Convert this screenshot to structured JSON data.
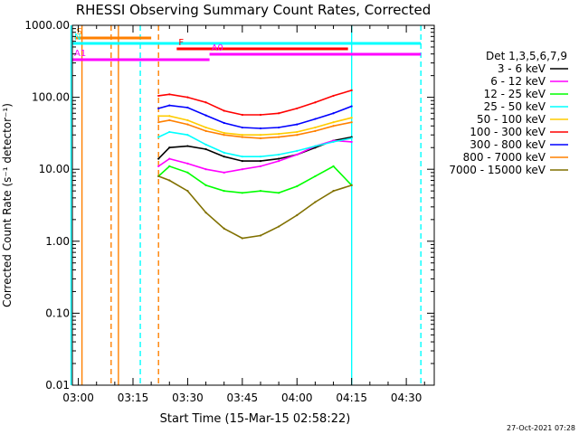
{
  "chart_data": {
    "type": "line",
    "title": "RHESSI Observing Summary Count Rates, Corrected",
    "xlabel": "Start Time (15-Mar-15 02:58:22)",
    "ylabel": "Corrected Count Rate (s⁻¹ detector⁻¹)",
    "y_scale": "log",
    "ylim": [
      0.01,
      1000
    ],
    "xlim": [
      "02:58:22",
      "04:37:40"
    ],
    "y_ticks": [
      "0.01",
      "0.10",
      "1.00",
      "10.00",
      "100.00",
      "1000.00"
    ],
    "x_ticks": [
      "03:00",
      "03:15",
      "03:30",
      "03:45",
      "04:00",
      "04:15",
      "04:30"
    ],
    "legend_title": "Det 1,3,5,6,7,9",
    "legend_position": "right",
    "series": [
      {
        "name": "3 - 6 keV",
        "color": "#000000",
        "x": [
          "03:22",
          "03:25",
          "03:30",
          "03:35",
          "03:40",
          "03:45",
          "03:50",
          "03:55",
          "04:00",
          "04:05",
          "04:10",
          "04:15"
        ],
        "values": [
          14,
          20,
          21,
          19,
          15,
          13,
          13,
          14,
          16,
          20,
          25,
          28
        ]
      },
      {
        "name": "6 - 12 keV",
        "color": "#ff00ff",
        "x": [
          "03:22",
          "03:25",
          "03:30",
          "03:35",
          "03:40",
          "03:45",
          "03:50",
          "03:55",
          "04:00",
          "04:05",
          "04:10",
          "04:15"
        ],
        "values": [
          11,
          14,
          12,
          10,
          9,
          10,
          11,
          13,
          16,
          21,
          25,
          24
        ]
      },
      {
        "name": "12 - 25 keV",
        "color": "#00ff00",
        "x": [
          "03:22",
          "03:25",
          "03:30",
          "03:35",
          "03:40",
          "03:45",
          "03:50",
          "03:55",
          "04:00",
          "04:05",
          "04:10",
          "04:15"
        ],
        "values": [
          8,
          11,
          9,
          6,
          5,
          4.7,
          5,
          4.7,
          5.8,
          8,
          11,
          6
        ]
      },
      {
        "name": "25 - 50 keV",
        "color": "#00ffff",
        "x": [
          "03:22",
          "03:25",
          "03:30",
          "03:35",
          "03:40",
          "03:45",
          "03:50",
          "03:55",
          "04:00",
          "04:05",
          "04:10",
          "04:15"
        ],
        "values": [
          28,
          33,
          30,
          22,
          17,
          15,
          15,
          16,
          18,
          21,
          24,
          27
        ]
      },
      {
        "name": "50 - 100 keV",
        "color": "#ffcc00",
        "x": [
          "03:22",
          "03:25",
          "03:30",
          "03:35",
          "03:40",
          "03:45",
          "03:50",
          "03:55",
          "04:00",
          "04:05",
          "04:10",
          "04:15"
        ],
        "values": [
          55,
          55,
          48,
          38,
          32,
          30,
          30,
          31,
          33,
          38,
          45,
          52
        ]
      },
      {
        "name": "100 - 300 keV",
        "color": "#ff0000",
        "x": [
          "03:22",
          "03:25",
          "03:30",
          "03:35",
          "03:40",
          "03:45",
          "03:50",
          "03:55",
          "04:00",
          "04:05",
          "04:10",
          "04:15"
        ],
        "values": [
          105,
          110,
          100,
          85,
          65,
          57,
          57,
          60,
          70,
          85,
          105,
          125
        ]
      },
      {
        "name": "300 - 800 keV",
        "color": "#0000ff",
        "x": [
          "03:22",
          "03:25",
          "03:30",
          "03:35",
          "03:40",
          "03:45",
          "03:50",
          "03:55",
          "04:00",
          "04:05",
          "04:10",
          "04:15"
        ],
        "values": [
          70,
          77,
          72,
          56,
          44,
          38,
          37,
          38,
          42,
          50,
          60,
          75
        ]
      },
      {
        "name": "800 - 7000 keV",
        "color": "#ff8000",
        "x": [
          "03:22",
          "03:25",
          "03:30",
          "03:35",
          "03:40",
          "03:45",
          "03:50",
          "03:55",
          "04:00",
          "04:05",
          "04:10",
          "04:15"
        ],
        "values": [
          45,
          48,
          42,
          34,
          30,
          28,
          27,
          28,
          30,
          34,
          40,
          45
        ]
      },
      {
        "name": "7000 - 15000 keV",
        "color": "#807000",
        "x": [
          "03:22",
          "03:25",
          "03:30",
          "03:35",
          "03:40",
          "03:45",
          "03:50",
          "03:55",
          "04:00",
          "04:05",
          "04:10",
          "04:15"
        ],
        "values": [
          8,
          7,
          5,
          2.5,
          1.5,
          1.1,
          1.2,
          1.6,
          2.3,
          3.5,
          5,
          6
        ]
      }
    ],
    "flags": [
      {
        "label": "S",
        "color": "#ff8000",
        "x_start": "02:59",
        "x_end": "03:20"
      },
      {
        "label": "N",
        "color": "#00ffff",
        "x_start": "02:58",
        "x_end": "04:34"
      },
      {
        "label": "F",
        "color": "#ff0000",
        "x_start": "03:27",
        "x_end": "04:14"
      },
      {
        "label": "A0",
        "color": "#ff00ff",
        "x_start": "03:36",
        "x_end": "04:34"
      },
      {
        "label": "A1",
        "color": "#ff00ff",
        "x_start": "02:58",
        "x_end": "03:36"
      }
    ],
    "vertical_markers": [
      {
        "color": "#00ffff",
        "style": "solid",
        "x": "02:58"
      },
      {
        "color": "#ff8000",
        "style": "solid",
        "x": "03:01"
      },
      {
        "color": "#ff8000",
        "style": "dashed",
        "x": "03:09"
      },
      {
        "color": "#ff8000",
        "style": "solid",
        "x": "03:11"
      },
      {
        "color": "#00ffff",
        "style": "dashed",
        "x": "03:17"
      },
      {
        "color": "#ff8000",
        "style": "dashed",
        "x": "03:22"
      },
      {
        "color": "#00ffff",
        "style": "solid",
        "x": "04:15"
      },
      {
        "color": "#00ffff",
        "style": "dashed",
        "x": "04:34"
      }
    ]
  },
  "footer": {
    "date_stamp": "27-Oct-2021 07:28"
  }
}
